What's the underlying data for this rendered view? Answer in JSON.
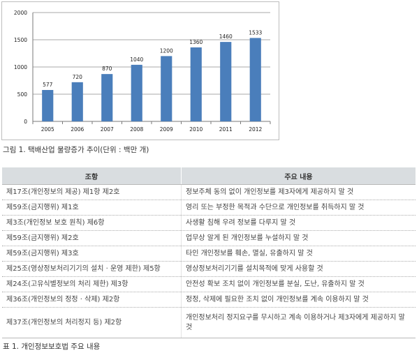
{
  "chart_data": {
    "type": "bar",
    "categories": [
      "2005",
      "2006",
      "2007",
      "2008",
      "2009",
      "2010",
      "2011",
      "2012"
    ],
    "values": [
      577,
      720,
      870,
      1040,
      1200,
      1360,
      1460,
      1533
    ],
    "ylim": [
      0,
      2000
    ],
    "yticks": [
      "0",
      "500",
      "1000",
      "1500",
      "2000"
    ],
    "grid": true,
    "bar_color": "#4a7ebb"
  },
  "figure_caption": "그림 1. 택배산업 물량증가 추이(단위 : 백만 개)",
  "table": {
    "headers": [
      "조항",
      "주요 내용"
    ],
    "rows": [
      [
        "제17조(개인정보의 제공) 제1항 제2호",
        "정보주체 동의 없이 개인정보를 제3자에게 제공하지 말 것"
      ],
      [
        "제59조(금지행위) 제1호",
        "영리 또는 부정한 목적과 수단으로 개인정보를 취득하지 말 것"
      ],
      [
        "제3조(개인정보 보호 원칙) 제6항",
        "사생활 침해 우려 정보를 다루지 말 것"
      ],
      [
        "제59조(금지행위) 제2호",
        "업무상 알게 된 개인정보를 누설하지 말 것"
      ],
      [
        "제59조(금지행위) 제3호",
        "타인 개인정보를 훼손, 멸실, 유출하지 말 것"
      ],
      [
        "제25조(영상정보처리기기의 설치 · 운영 제한) 제5항",
        "영상정보처리기기를 설치목적에 맞게 사용할 것"
      ],
      [
        "제24조(고유식별정보의 처리 제한) 제3항",
        "안전성 확보 조치 없이 개인정보를 분실, 도난, 유출하지 말 것"
      ],
      [
        "제36조(개인정보의 정정 · 삭제) 제2항",
        "정정, 삭제에 필요한 조치 없이 개인정보를 계속 이용하지 말 것"
      ],
      [
        "제37조(개인정보의 처리정지 등) 제2항",
        "개인정보처리 정지요구를 무시하고 계속 이용하거나 제3자에게 제공하지 말 것"
      ]
    ]
  },
  "table_caption": "표 1. 개인정보보호법 주요 내용"
}
